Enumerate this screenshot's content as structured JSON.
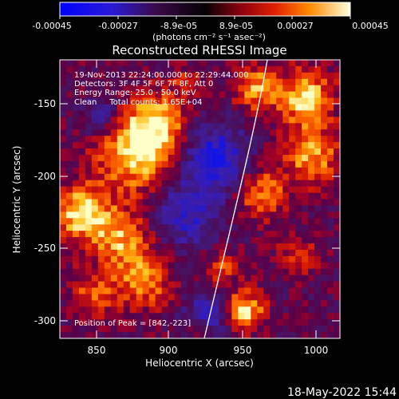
{
  "colorbar": {
    "min": -0.00045,
    "max": 0.00045,
    "tick_labels": [
      "-0.00045",
      "-0.00027",
      "-8.9e-05",
      "8.9e-05",
      "0.00027",
      "0.00045"
    ],
    "unit_label": "(photons cm⁻² s⁻¹ asec⁻²)"
  },
  "image": {
    "title": "Reconstructed RHESSI Image",
    "x_label": "Heliocentric X (arcsec)",
    "y_label": "Heliocentric Y (arcsec)",
    "x_range": [
      825,
      1015
    ],
    "y_range": [
      -313,
      -123
    ],
    "x_ticks": [
      "850",
      "900",
      "950",
      "1000"
    ],
    "y_ticks": [
      "-150",
      "-200",
      "-250",
      "-300"
    ],
    "info_lines": [
      "19-Nov-2013 22:24:00.000 to 22:29:44.000",
      "Detectors: 3F 4F 5F 6F 7F 8F, Att 0",
      "Energy Range: 25.0 - 50.0 keV",
      "Clean     Total counts: 1.65E+04"
    ],
    "peak_label": "Position of Peak = [842,-223]",
    "peak_position": [
      842,
      -223
    ]
  },
  "footer": {
    "timestamp": "18-May-2022 15:44"
  }
}
